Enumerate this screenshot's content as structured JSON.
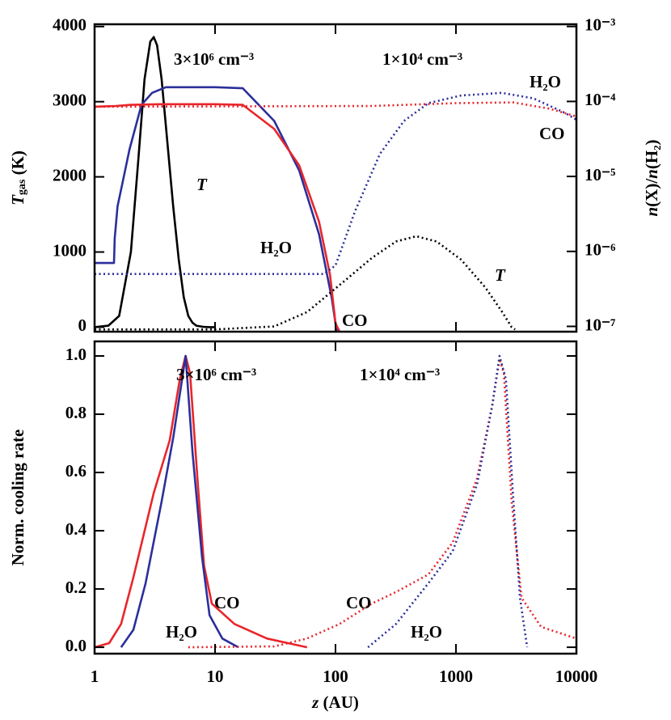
{
  "chart_data": [
    {
      "type": "line",
      "xscale": "log",
      "xlim": [
        1,
        10000
      ],
      "ylim": [
        -60,
        4030
      ],
      "yticks": [
        0,
        1000,
        2000,
        3000,
        4000
      ],
      "ylabel": [
        "T",
        "gas",
        " (K)"
      ],
      "y2scale": "log",
      "y2lim": [
        8.5e-08,
        0.00107
      ],
      "y2ticks": [
        {
          "value": 1e-07,
          "label": "10⁻⁷"
        },
        {
          "value": 1e-06,
          "label": "10⁻⁶"
        },
        {
          "value": 1e-05,
          "label": "10⁻⁵"
        },
        {
          "value": 0.0001,
          "label": "10⁻⁴"
        },
        {
          "value": 0.001,
          "label": "10⁻³"
        }
      ],
      "y2label": [
        "n",
        "(X)/",
        "n",
        "(H₂)"
      ],
      "annotations": [
        {
          "text": "3×10⁶ cm⁻³",
          "color": "#000000"
        },
        {
          "text": "1×10⁴ cm⁻³",
          "color": "#000000"
        },
        {
          "text": "T",
          "color": "#000000"
        },
        {
          "text": "H₂O",
          "color": "#2b2f9a"
        },
        {
          "text": "CO",
          "color": "#e8262b"
        },
        {
          "text": "H₂O",
          "color": "#2b2f9a"
        },
        {
          "text": "CO",
          "color": "#e8262b"
        },
        {
          "text": "T",
          "color": "#000000"
        }
      ],
      "series": [
        {
          "color": "#000000",
          "linestyle": "solid",
          "axis": "y",
          "x": [
            1,
            1.3,
            1.6,
            2,
            2.3,
            2.6,
            2.9,
            3.1,
            3.3,
            3.6,
            4,
            4.5,
            5,
            5.5,
            6,
            6.5,
            7,
            8,
            9,
            10
          ],
          "values": [
            0,
            20,
            150,
            1000,
            2200,
            3300,
            3800,
            3860,
            3750,
            3300,
            2500,
            1600,
            900,
            400,
            150,
            60,
            20,
            5,
            0,
            0
          ]
        },
        {
          "color": "#2b2f9a",
          "linestyle": "solid",
          "axis": "y2",
          "x": [
            1,
            1.45,
            1.47,
            1.55,
            1.7,
            1.95,
            2.45,
            3,
            3.9,
            10,
            17,
            31,
            50,
            73,
            93,
            103
          ],
          "values": [
            7e-07,
            7e-07,
            1.5e-06,
            4e-06,
            8e-06,
            2.3e-05,
            9e-05,
            0.00013,
            0.000155,
            0.000155,
            0.00015,
            5.5e-05,
            1.2e-05,
            1.7e-06,
            2.4e-07,
            8e-08
          ]
        },
        {
          "color": "#e8262b",
          "linestyle": "solid",
          "axis": "y2",
          "x": [
            1,
            1.5,
            2,
            3.5,
            10,
            17,
            31,
            50,
            73,
            90,
            100,
            110
          ],
          "values": [
            8.5e-05,
            8.7e-05,
            9e-05,
            9.2e-05,
            9.2e-05,
            9e-05,
            4.3e-05,
            1.4e-05,
            2.5e-06,
            4.9e-07,
            1.1e-07,
            8e-08
          ]
        },
        {
          "color": "#2b2f9a",
          "linestyle": "dotted",
          "axis": "y2",
          "x": [
            1,
            80,
            100,
            146,
            234,
            370,
            590,
            1100,
            2400,
            4400,
            8100,
            10000
          ],
          "values": [
            5e-07,
            5e-07,
            6.5e-07,
            3.5e-06,
            2e-05,
            5.5e-05,
            9.5e-05,
            0.00012,
            0.00013,
            0.00011,
            7e-05,
            5.7e-05
          ]
        },
        {
          "color": "#e8262b",
          "linestyle": "dotted",
          "axis": "y2",
          "x": [
            1,
            200,
            1000,
            3000,
            6000,
            10000
          ],
          "values": [
            8.5e-05,
            8.7e-05,
            9.5e-05,
            9.7e-05,
            8e-05,
            6.3e-05
          ]
        },
        {
          "color": "#000000",
          "linestyle": "dotted",
          "axis": "y",
          "x": [
            1,
            10,
            31,
            58,
            108,
            200,
            318,
            470,
            690,
            1100,
            1750,
            2400,
            2900,
            3100
          ],
          "values": [
            -30,
            -30,
            10,
            200,
            560,
            920,
            1140,
            1210,
            1140,
            900,
            530,
            210,
            0,
            -30
          ]
        }
      ]
    },
    {
      "type": "line",
      "xscale": "log",
      "xlim": [
        1,
        10000
      ],
      "xticks": [
        1,
        10,
        100,
        1000,
        10000
      ],
      "xlabel": [
        "z",
        " (AU)"
      ],
      "ylim": [
        -0.022,
        1.05
      ],
      "yticks": [
        {
          "value": 0,
          "label": "0.0"
        },
        0.2,
        0.4,
        0.6,
        0.8,
        {
          "value": 1,
          "label": "1.0"
        }
      ],
      "ylabel": [
        "Norm. cooling rate"
      ],
      "annotations": [
        {
          "text": "3×10⁶ cm⁻³",
          "color": "#000000"
        },
        {
          "text": "1×10⁴ cm⁻³",
          "color": "#000000"
        },
        {
          "text": "CO",
          "color": "#e8262b"
        },
        {
          "text": "H₂O",
          "color": "#2b2f9a"
        },
        {
          "text": "CO",
          "color": "#e8262b"
        },
        {
          "text": "H₂O",
          "color": "#2b2f9a"
        }
      ],
      "series": [
        {
          "color": "#e8262b",
          "linestyle": "solid",
          "x": [
            1,
            1.32,
            1.66,
            2.1,
            3.1,
            4.2,
            5.1,
            5.7,
            6.2,
            7.2,
            8.1,
            9.4,
            14.5,
            27,
            58
          ],
          "values": [
            0,
            0.014,
            0.08,
            0.24,
            0.53,
            0.71,
            0.92,
            1.0,
            0.94,
            0.56,
            0.28,
            0.15,
            0.08,
            0.03,
            0
          ]
        },
        {
          "color": "#2b2f9a",
          "linestyle": "solid",
          "x": [
            1.66,
            2.1,
            2.65,
            3.6,
            4.5,
            5.7,
            6.5,
            7.8,
            9,
            11.5,
            15.6
          ],
          "values": [
            0,
            0.06,
            0.22,
            0.5,
            0.72,
            1.0,
            0.67,
            0.31,
            0.11,
            0.03,
            0
          ]
        },
        {
          "color": "#e8262b",
          "linestyle": "dotted",
          "x": [
            6,
            31,
            58,
            108,
            200,
            318,
            590,
            940,
            1500,
            2000,
            2300,
            2500,
            2900,
            3500,
            5100,
            10000
          ],
          "values": [
            0,
            0.003,
            0.03,
            0.08,
            0.15,
            0.19,
            0.25,
            0.36,
            0.58,
            0.83,
            0.99,
            0.94,
            0.5,
            0.17,
            0.07,
            0.03
          ]
        },
        {
          "color": "#2b2f9a",
          "linestyle": "dotted",
          "x": [
            186,
            318,
            590,
            940,
            1500,
            2000,
            2300,
            2600,
            3000,
            3400,
            3900
          ],
          "values": [
            0,
            0.08,
            0.22,
            0.33,
            0.56,
            0.83,
            1.0,
            0.92,
            0.5,
            0.17,
            0
          ]
        }
      ]
    }
  ]
}
